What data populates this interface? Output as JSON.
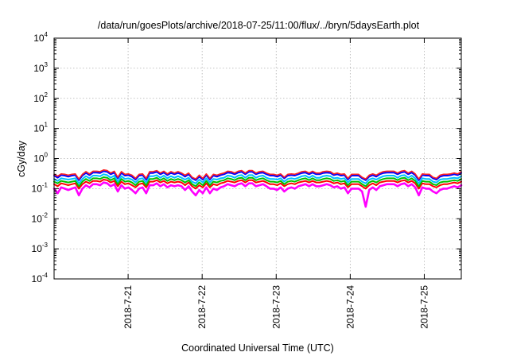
{
  "chart_data": {
    "type": "line",
    "title": "/data/run/goesPlots/archive/2018-07-25/11:00/flux/../bryn/5daysEarth.plot",
    "xlabel": "Coordinated Universal Time (UTC)",
    "ylabel": "cGy/day",
    "y_scale": "log",
    "ylim": [
      0.0001,
      10000
    ],
    "y_ticks": [
      {
        "base": "10",
        "exp": "-4",
        "value": 0.0001
      },
      {
        "base": "10",
        "exp": "-3",
        "value": 0.001
      },
      {
        "base": "10",
        "exp": "-2",
        "value": 0.01
      },
      {
        "base": "10",
        "exp": "-1",
        "value": 0.1
      },
      {
        "base": "10",
        "exp": "0",
        "value": 1
      },
      {
        "base": "10",
        "exp": "1",
        "value": 10
      },
      {
        "base": "10",
        "exp": "2",
        "value": 100
      },
      {
        "base": "10",
        "exp": "3",
        "value": 1000
      },
      {
        "base": "10",
        "exp": "4",
        "value": 10000
      }
    ],
    "xlim": [
      "2018-07-20 00:00",
      "2018-07-25 12:00"
    ],
    "x_ticks": [
      {
        "label": "2018-7-21",
        "value": "2018-07-21 00:00"
      },
      {
        "label": "2018-7-22",
        "value": "2018-07-22 00:00"
      },
      {
        "label": "2018-7-23",
        "value": "2018-07-23 00:00"
      },
      {
        "label": "2018-7-24",
        "value": "2018-07-24 00:00"
      },
      {
        "label": "2018-7-25",
        "value": "2018-07-25 00:00"
      }
    ],
    "grid": true,
    "series": [
      {
        "color": "#ff00ff",
        "values": [
          0.1,
          0.07,
          0.11,
          0.1,
          0.09,
          0.1,
          0.11,
          0.06,
          0.1,
          0.13,
          0.11,
          0.14,
          0.14,
          0.13,
          0.16,
          0.15,
          0.12,
          0.14,
          0.08,
          0.13,
          0.1,
          0.11,
          0.09,
          0.07,
          0.1,
          0.11,
          0.07,
          0.13,
          0.13,
          0.15,
          0.12,
          0.14,
          0.11,
          0.13,
          0.12,
          0.13,
          0.12,
          0.09,
          0.12,
          0.08,
          0.06,
          0.09,
          0.07,
          0.11,
          0.07,
          0.1,
          0.09,
          0.11,
          0.12,
          0.14,
          0.13,
          0.12,
          0.14,
          0.15,
          0.12,
          0.15,
          0.15,
          0.12,
          0.13,
          0.14,
          0.12,
          0.1,
          0.1,
          0.09,
          0.11,
          0.08,
          0.1,
          0.11,
          0.1,
          0.12,
          0.13,
          0.14,
          0.12,
          0.14,
          0.12,
          0.12,
          0.13,
          0.14,
          0.13,
          0.11,
          0.12,
          0.1,
          0.11,
          0.07,
          0.1,
          0.1,
          0.1,
          0.08,
          0.025,
          0.09,
          0.11,
          0.09,
          0.12,
          0.13,
          0.14,
          0.14,
          0.14,
          0.12,
          0.14,
          0.15,
          0.12,
          0.14,
          0.11,
          0.06,
          0.11,
          0.1,
          0.1,
          0.08,
          0.07,
          0.09,
          0.1,
          0.1,
          0.11,
          0.12,
          0.11,
          0.13
        ]
      },
      {
        "color": "#ff0000",
        "values": [
          0.14,
          0.12,
          0.15,
          0.14,
          0.13,
          0.14,
          0.15,
          0.1,
          0.14,
          0.17,
          0.15,
          0.18,
          0.18,
          0.17,
          0.2,
          0.19,
          0.16,
          0.18,
          0.12,
          0.17,
          0.14,
          0.15,
          0.13,
          0.11,
          0.14,
          0.15,
          0.11,
          0.17,
          0.17,
          0.19,
          0.16,
          0.18,
          0.15,
          0.17,
          0.16,
          0.17,
          0.16,
          0.13,
          0.16,
          0.12,
          0.1,
          0.13,
          0.11,
          0.15,
          0.11,
          0.14,
          0.13,
          0.15,
          0.16,
          0.18,
          0.17,
          0.16,
          0.18,
          0.19,
          0.16,
          0.19,
          0.19,
          0.16,
          0.17,
          0.18,
          0.16,
          0.14,
          0.14,
          0.13,
          0.15,
          0.12,
          0.14,
          0.15,
          0.14,
          0.16,
          0.17,
          0.18,
          0.16,
          0.18,
          0.16,
          0.16,
          0.17,
          0.18,
          0.17,
          0.15,
          0.16,
          0.14,
          0.15,
          0.11,
          0.14,
          0.14,
          0.14,
          0.12,
          0.1,
          0.13,
          0.15,
          0.13,
          0.16,
          0.17,
          0.18,
          0.18,
          0.18,
          0.16,
          0.18,
          0.19,
          0.16,
          0.18,
          0.15,
          0.1,
          0.15,
          0.14,
          0.14,
          0.12,
          0.11,
          0.13,
          0.14,
          0.14,
          0.15,
          0.16,
          0.15,
          0.17
        ]
      },
      {
        "color": "#00c000",
        "values": [
          0.17,
          0.15,
          0.18,
          0.17,
          0.16,
          0.17,
          0.18,
          0.12,
          0.17,
          0.21,
          0.18,
          0.22,
          0.22,
          0.21,
          0.24,
          0.23,
          0.19,
          0.22,
          0.14,
          0.21,
          0.17,
          0.18,
          0.16,
          0.13,
          0.17,
          0.18,
          0.13,
          0.21,
          0.21,
          0.23,
          0.19,
          0.22,
          0.18,
          0.21,
          0.19,
          0.21,
          0.19,
          0.16,
          0.19,
          0.14,
          0.12,
          0.16,
          0.13,
          0.18,
          0.13,
          0.17,
          0.16,
          0.18,
          0.19,
          0.22,
          0.21,
          0.19,
          0.22,
          0.23,
          0.19,
          0.23,
          0.23,
          0.19,
          0.21,
          0.22,
          0.19,
          0.17,
          0.17,
          0.16,
          0.18,
          0.14,
          0.17,
          0.18,
          0.17,
          0.19,
          0.21,
          0.22,
          0.19,
          0.22,
          0.19,
          0.19,
          0.21,
          0.22,
          0.21,
          0.18,
          0.19,
          0.17,
          0.18,
          0.13,
          0.17,
          0.17,
          0.17,
          0.14,
          0.12,
          0.16,
          0.18,
          0.16,
          0.19,
          0.21,
          0.22,
          0.22,
          0.22,
          0.19,
          0.22,
          0.23,
          0.19,
          0.22,
          0.18,
          0.12,
          0.18,
          0.17,
          0.17,
          0.14,
          0.13,
          0.16,
          0.17,
          0.17,
          0.18,
          0.19,
          0.18,
          0.21
        ]
      },
      {
        "color": "#00c0ff",
        "values": [
          0.21,
          0.18,
          0.22,
          0.21,
          0.2,
          0.21,
          0.22,
          0.15,
          0.21,
          0.26,
          0.22,
          0.27,
          0.27,
          0.26,
          0.3,
          0.28,
          0.23,
          0.27,
          0.17,
          0.26,
          0.21,
          0.22,
          0.2,
          0.16,
          0.21,
          0.22,
          0.16,
          0.26,
          0.26,
          0.28,
          0.23,
          0.27,
          0.22,
          0.26,
          0.23,
          0.26,
          0.23,
          0.2,
          0.23,
          0.17,
          0.15,
          0.2,
          0.16,
          0.22,
          0.16,
          0.21,
          0.2,
          0.22,
          0.23,
          0.27,
          0.26,
          0.23,
          0.27,
          0.28,
          0.23,
          0.28,
          0.28,
          0.23,
          0.26,
          0.27,
          0.23,
          0.21,
          0.21,
          0.2,
          0.22,
          0.17,
          0.21,
          0.22,
          0.21,
          0.23,
          0.26,
          0.27,
          0.23,
          0.27,
          0.23,
          0.23,
          0.26,
          0.27,
          0.26,
          0.22,
          0.23,
          0.21,
          0.22,
          0.16,
          0.21,
          0.21,
          0.21,
          0.17,
          0.15,
          0.2,
          0.22,
          0.2,
          0.23,
          0.26,
          0.27,
          0.27,
          0.27,
          0.23,
          0.27,
          0.28,
          0.23,
          0.27,
          0.22,
          0.15,
          0.22,
          0.21,
          0.21,
          0.17,
          0.16,
          0.2,
          0.21,
          0.21,
          0.22,
          0.23,
          0.22,
          0.26
        ]
      },
      {
        "color": "#0000ff",
        "values": [
          0.27,
          0.23,
          0.28,
          0.27,
          0.25,
          0.27,
          0.28,
          0.19,
          0.27,
          0.33,
          0.28,
          0.34,
          0.34,
          0.33,
          0.38,
          0.36,
          0.3,
          0.34,
          0.22,
          0.33,
          0.27,
          0.28,
          0.25,
          0.2,
          0.27,
          0.28,
          0.2,
          0.33,
          0.33,
          0.36,
          0.3,
          0.34,
          0.28,
          0.33,
          0.3,
          0.33,
          0.3,
          0.25,
          0.3,
          0.22,
          0.19,
          0.25,
          0.2,
          0.28,
          0.2,
          0.27,
          0.25,
          0.28,
          0.3,
          0.34,
          0.33,
          0.3,
          0.34,
          0.36,
          0.3,
          0.36,
          0.36,
          0.3,
          0.33,
          0.34,
          0.3,
          0.27,
          0.27,
          0.25,
          0.28,
          0.22,
          0.27,
          0.28,
          0.27,
          0.3,
          0.33,
          0.34,
          0.3,
          0.34,
          0.3,
          0.3,
          0.33,
          0.34,
          0.33,
          0.28,
          0.3,
          0.27,
          0.28,
          0.2,
          0.27,
          0.27,
          0.27,
          0.22,
          0.19,
          0.25,
          0.28,
          0.25,
          0.3,
          0.33,
          0.34,
          0.34,
          0.34,
          0.3,
          0.34,
          0.36,
          0.3,
          0.34,
          0.28,
          0.19,
          0.28,
          0.27,
          0.27,
          0.22,
          0.2,
          0.25,
          0.27,
          0.27,
          0.28,
          0.3,
          0.28,
          0.33
        ]
      },
      {
        "color": "#ff2020",
        "values": [
          0.3,
          0.26,
          0.31,
          0.3,
          0.28,
          0.3,
          0.31,
          0.21,
          0.3,
          0.37,
          0.31,
          0.38,
          0.38,
          0.37,
          0.42,
          0.4,
          0.33,
          0.38,
          0.24,
          0.37,
          0.3,
          0.31,
          0.28,
          0.22,
          0.3,
          0.31,
          0.22,
          0.37,
          0.37,
          0.4,
          0.33,
          0.38,
          0.31,
          0.37,
          0.33,
          0.37,
          0.33,
          0.28,
          0.33,
          0.24,
          0.21,
          0.28,
          0.22,
          0.31,
          0.22,
          0.3,
          0.28,
          0.31,
          0.33,
          0.38,
          0.37,
          0.33,
          0.38,
          0.4,
          0.33,
          0.4,
          0.4,
          0.33,
          0.37,
          0.38,
          0.33,
          0.3,
          0.3,
          0.28,
          0.31,
          0.24,
          0.3,
          0.31,
          0.3,
          0.33,
          0.37,
          0.38,
          0.33,
          0.38,
          0.33,
          0.33,
          0.37,
          0.38,
          0.37,
          0.31,
          0.33,
          0.3,
          0.31,
          0.22,
          0.3,
          0.3,
          0.3,
          0.24,
          0.21,
          0.28,
          0.31,
          0.28,
          0.33,
          0.37,
          0.38,
          0.38,
          0.38,
          0.33,
          0.38,
          0.4,
          0.33,
          0.38,
          0.31,
          0.21,
          0.31,
          0.3,
          0.3,
          0.24,
          0.22,
          0.28,
          0.3,
          0.3,
          0.31,
          0.33,
          0.31,
          0.37
        ]
      }
    ]
  }
}
